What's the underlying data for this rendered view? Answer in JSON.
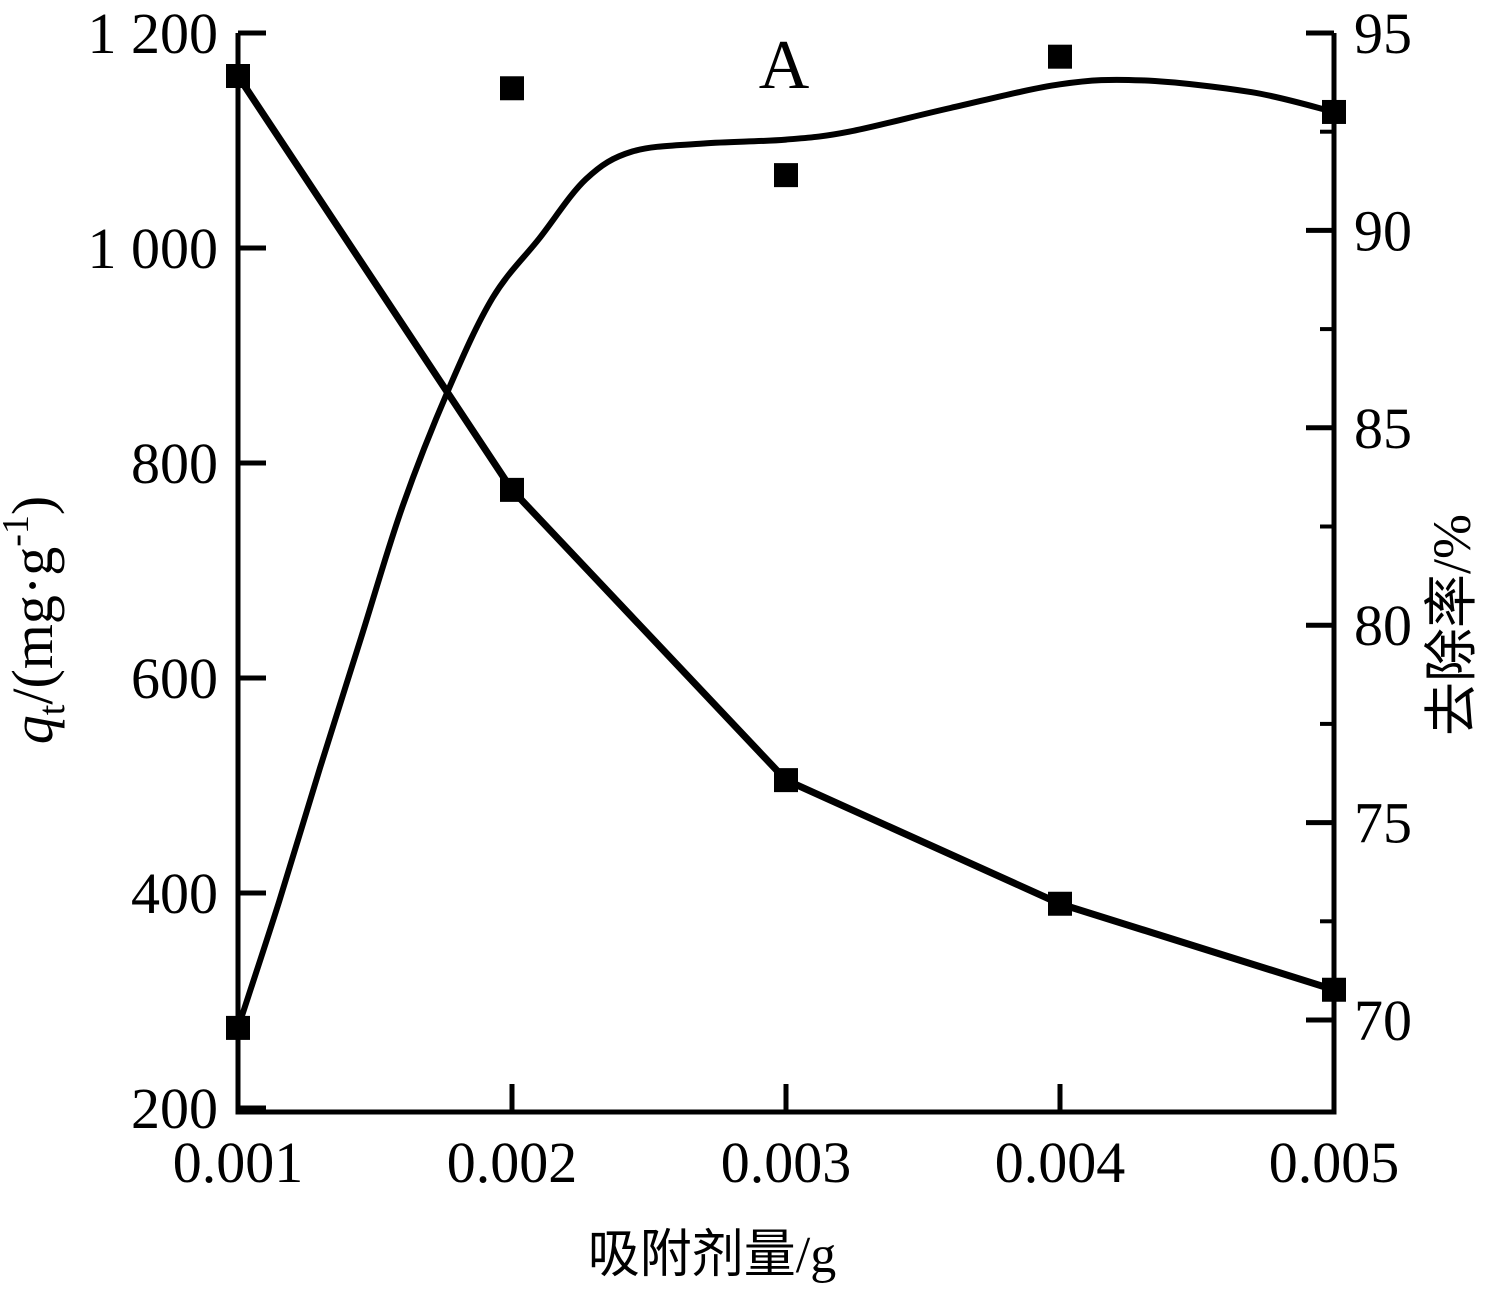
{
  "figure_label": "A",
  "colors": {
    "ink": "#000000",
    "background": "#ffffff"
  },
  "chart_data": {
    "type": "line",
    "title": "",
    "xlabel": "吸附剂量/g",
    "ylabel_left_parts": {
      "q": "q",
      "sub": "t",
      "mid": "/(mg·g",
      "sup": "-1",
      "close": ")"
    },
    "ylabel_right": "去除率/%",
    "xlim": [
      0.001,
      0.005
    ],
    "ylim_left": [
      200,
      1200
    ],
    "ylim_right": [
      70,
      95
    ],
    "grid": false,
    "legend": "none",
    "x_ticks": {
      "values": [
        0.001,
        0.002,
        0.003,
        0.004,
        0.005
      ],
      "labels": [
        "0.001",
        "0.002",
        "0.003",
        "0.004",
        "0.005"
      ]
    },
    "left_axis_ticks": {
      "values": [
        1200,
        1000,
        800,
        600,
        400,
        200
      ],
      "labels": [
        "1 200",
        "1 000",
        "800",
        "600",
        "400",
        "200"
      ]
    },
    "right_axis_ticks": {
      "values": [
        95,
        90,
        85,
        80,
        75,
        70
      ],
      "labels": [
        "95",
        "90",
        "85",
        "80",
        "75",
        "70"
      ],
      "minor_values": [
        92.5,
        87.5,
        82.5,
        77.5,
        72.5
      ]
    },
    "series": [
      {
        "name": "adsorption-capacity-qt",
        "axis": "left",
        "marker": "square",
        "line_style": "straight-segments",
        "x": [
          0.001,
          0.002,
          0.003,
          0.004,
          0.005
        ],
        "values": [
          1160,
          775,
          505,
          390,
          310
        ]
      },
      {
        "name": "removal-rate",
        "axis": "right",
        "marker": "square",
        "line_style": "smooth-fit-curve",
        "x": [
          0.001,
          0.002,
          0.003,
          0.004,
          0.005
        ],
        "values": [
          69.8,
          93.6,
          91.4,
          94.4,
          93.0
        ]
      }
    ],
    "fit_curve_points": [
      [
        0.001,
        69.8
      ],
      [
        0.00115,
        73.0
      ],
      [
        0.0013,
        76.4
      ],
      [
        0.00145,
        79.7
      ],
      [
        0.0016,
        83.0
      ],
      [
        0.00177,
        86.0
      ],
      [
        0.00193,
        88.3
      ],
      [
        0.0021,
        89.8
      ],
      [
        0.00227,
        91.3
      ],
      [
        0.00244,
        92.0
      ],
      [
        0.0027,
        92.2
      ],
      [
        0.003,
        92.3
      ],
      [
        0.00323,
        92.5
      ],
      [
        0.0036,
        93.1
      ],
      [
        0.004,
        93.7
      ],
      [
        0.0043,
        93.8
      ],
      [
        0.0047,
        93.5
      ],
      [
        0.005,
        93.0
      ]
    ]
  }
}
